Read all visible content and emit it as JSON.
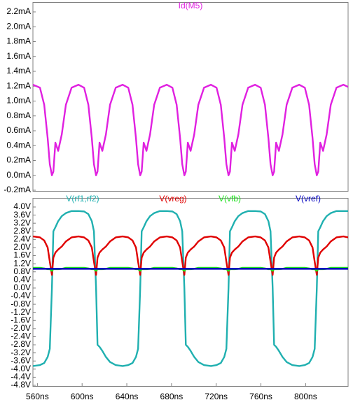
{
  "chart_data": [
    {
      "type": "line",
      "x": [
        556,
        562.3,
        566.1,
        569.2,
        571.1,
        573.0,
        574.3,
        576.1,
        578.6,
        581.8,
        585.5,
        590.6,
        596.8,
        601.8,
        605.6,
        608.7,
        610.6,
        612.5,
        613.8,
        615.6,
        618.1,
        621.3,
        625.0,
        630.1,
        636.3,
        641.3,
        645.1,
        648.2,
        650.1,
        652.0,
        653.3,
        655.1,
        657.6,
        660.8,
        664.5,
        669.6,
        675.8,
        680.8,
        684.6,
        687.7,
        689.6,
        691.5,
        692.8,
        694.6,
        697.1,
        700.3,
        704.0,
        709.1,
        715.3,
        720.3,
        724.1,
        727.2,
        729.1,
        731.0,
        732.3,
        734.1,
        736.6,
        739.8,
        743.5,
        748.6,
        754.8,
        759.8,
        763.6,
        766.7,
        768.6,
        770.5,
        771.8,
        773.6,
        776.1,
        779.3,
        783.0,
        788.1,
        794.3,
        799.3,
        803.1,
        806.2,
        808.1,
        810.0,
        811.3,
        813.1,
        815.6,
        818.8,
        822.5,
        827.6,
        833.8,
        838
      ],
      "xlim": [
        556,
        838
      ],
      "ylim": [
        -0.2,
        2.2
      ],
      "yticks": [
        {
          "value": -0.2,
          "label": "-0.2mA"
        },
        {
          "value": 0,
          "label": "0.0mA"
        },
        {
          "value": 0.2,
          "label": "0.2mA"
        },
        {
          "value": 0.4,
          "label": "0.4mA"
        },
        {
          "value": 0.6,
          "label": "0.6mA"
        },
        {
          "value": 0.8,
          "label": "0.8mA"
        },
        {
          "value": 1.0,
          "label": "1.0mA"
        },
        {
          "value": 1.2,
          "label": "1.2mA"
        },
        {
          "value": 1.4,
          "label": "1.4mA"
        },
        {
          "value": 1.6,
          "label": "1.6mA"
        },
        {
          "value": 1.8,
          "label": "1.8mA"
        },
        {
          "value": 2.0,
          "label": "2.0mA"
        },
        {
          "value": 2.2,
          "label": "2.2mA"
        }
      ],
      "series": [
        {
          "name": "Id(M5)",
          "color": "#e020e0",
          "values": [
            1.22,
            1.18,
            0.95,
            0.5,
            0.15,
            0,
            0.05,
            0.44,
            0.33,
            0.55,
            0.95,
            1.18,
            1.22,
            1.18,
            0.95,
            0.5,
            0.15,
            0,
            0.05,
            0.44,
            0.33,
            0.55,
            0.95,
            1.18,
            1.22,
            1.18,
            0.95,
            0.5,
            0.15,
            0,
            0.05,
            0.44,
            0.33,
            0.55,
            0.95,
            1.18,
            1.22,
            1.18,
            0.95,
            0.5,
            0.15,
            0,
            0.05,
            0.44,
            0.33,
            0.55,
            0.95,
            1.18,
            1.22,
            1.18,
            0.95,
            0.5,
            0.15,
            0,
            0.05,
            0.44,
            0.33,
            0.55,
            0.95,
            1.18,
            1.22,
            1.18,
            0.95,
            0.5,
            0.15,
            0,
            0.05,
            0.44,
            0.33,
            0.55,
            0.95,
            1.18,
            1.22,
            1.18,
            0.95,
            0.5,
            0.15,
            0,
            0.05,
            0.44,
            0.33,
            0.55,
            0.95,
            1.18,
            1.22,
            1.19
          ]
        }
      ]
    },
    {
      "type": "line",
      "x": [
        556,
        562.3,
        566.1,
        569.2,
        571.1,
        573.0,
        574.3,
        576.1,
        578.6,
        581.8,
        585.5,
        590.6,
        596.8,
        601.8,
        605.6,
        608.7,
        610.6,
        612.5,
        613.8,
        615.6,
        618.1,
        621.3,
        625.0,
        630.1,
        636.3,
        641.3,
        645.1,
        648.2,
        650.1,
        652.0,
        653.3,
        655.1,
        657.6,
        660.8,
        664.5,
        669.6,
        675.8,
        680.8,
        684.6,
        687.7,
        689.6,
        691.5,
        692.8,
        694.6,
        697.1,
        700.3,
        704.0,
        709.1,
        715.3,
        720.3,
        724.1,
        727.2,
        729.1,
        731.0,
        732.3,
        734.1,
        736.6,
        739.8,
        743.5,
        748.6,
        754.8,
        759.8,
        763.6,
        766.7,
        768.6,
        770.5,
        771.8,
        773.6,
        776.1,
        779.3,
        783.0,
        788.1,
        794.3,
        799.3,
        803.1,
        806.2,
        808.1,
        810.0,
        811.3,
        813.1,
        815.6,
        818.8,
        822.5,
        827.6,
        833.8,
        838
      ],
      "xlim": [
        556,
        838
      ],
      "xticks": [
        {
          "value": 560,
          "label": "560ns"
        },
        {
          "value": 600,
          "label": "600ns"
        },
        {
          "value": 640,
          "label": "640ns"
        },
        {
          "value": 680,
          "label": "680ns"
        },
        {
          "value": 720,
          "label": "720ns"
        },
        {
          "value": 760,
          "label": "760ns"
        },
        {
          "value": 800,
          "label": "800ns"
        }
      ],
      "ylim": [
        -4.8,
        4.0
      ],
      "yticks": [
        {
          "value": -4.8,
          "label": "-4.8V"
        },
        {
          "value": -4.4,
          "label": "-4.4V"
        },
        {
          "value": -4.0,
          "label": "-4.0V"
        },
        {
          "value": -3.6,
          "label": "-3.6V"
        },
        {
          "value": -3.2,
          "label": "-3.2V"
        },
        {
          "value": -2.8,
          "label": "-2.8V"
        },
        {
          "value": -2.4,
          "label": "-2.4V"
        },
        {
          "value": -2.0,
          "label": "-2.0V"
        },
        {
          "value": -1.6,
          "label": "-1.6V"
        },
        {
          "value": -1.2,
          "label": "-1.2V"
        },
        {
          "value": -0.8,
          "label": "-0.8V"
        },
        {
          "value": -0.4,
          "label": "-0.4V"
        },
        {
          "value": 0,
          "label": "0.0V"
        },
        {
          "value": 0.4,
          "label": "0.4V"
        },
        {
          "value": 0.8,
          "label": "0.8V"
        },
        {
          "value": 1.2,
          "label": "1.2V"
        },
        {
          "value": 1.6,
          "label": "1.6V"
        },
        {
          "value": 2.0,
          "label": "2.0V"
        },
        {
          "value": 2.4,
          "label": "2.4V"
        },
        {
          "value": 2.8,
          "label": "2.8V"
        },
        {
          "value": 3.2,
          "label": "3.2V"
        },
        {
          "value": 3.6,
          "label": "3.6V"
        },
        {
          "value": 4.0,
          "label": "4.0V"
        }
      ],
      "series": [
        {
          "name": "V(rf1,rf2)",
          "color": "#20b0b0",
          "values": [
            -3.85,
            -3.8,
            -3.7,
            -3.4,
            -3.0,
            0,
            2.8,
            3.0,
            3.3,
            3.55,
            3.7,
            3.8,
            3.8,
            3.78,
            3.65,
            3.3,
            2.8,
            0,
            -2.8,
            -2.9,
            -3.1,
            -3.4,
            -3.65,
            -3.8,
            -3.85,
            -3.8,
            -3.7,
            -3.4,
            -3.0,
            0,
            2.8,
            3.0,
            3.3,
            3.55,
            3.7,
            3.8,
            3.8,
            3.78,
            3.65,
            3.3,
            2.8,
            0,
            -2.8,
            -2.9,
            -3.1,
            -3.4,
            -3.65,
            -3.8,
            -3.85,
            -3.8,
            -3.7,
            -3.4,
            -3.0,
            0,
            2.8,
            3.0,
            3.3,
            3.55,
            3.7,
            3.8,
            3.8,
            3.78,
            3.65,
            3.3,
            2.8,
            0,
            -2.8,
            -2.9,
            -3.1,
            -3.4,
            -3.65,
            -3.8,
            -3.85,
            -3.8,
            -3.7,
            -3.4,
            -3.0,
            0,
            2.8,
            3.0,
            3.3,
            3.55,
            3.7,
            3.8,
            3.8,
            3.8
          ]
        },
        {
          "name": "V(vreg)",
          "color": "#e00000",
          "values": [
            2.55,
            2.5,
            2.35,
            2.0,
            1.3,
            0.65,
            1.5,
            1.75,
            1.9,
            2.05,
            2.3,
            2.5,
            2.55,
            2.5,
            2.35,
            2.0,
            1.3,
            0.65,
            1.5,
            1.75,
            1.9,
            2.05,
            2.3,
            2.5,
            2.55,
            2.5,
            2.35,
            2.0,
            1.3,
            0.65,
            1.5,
            1.75,
            1.9,
            2.05,
            2.3,
            2.5,
            2.55,
            2.5,
            2.35,
            2.0,
            1.3,
            0.65,
            1.5,
            1.75,
            1.9,
            2.05,
            2.3,
            2.5,
            2.55,
            2.5,
            2.35,
            2.0,
            1.3,
            0.65,
            1.5,
            1.75,
            1.9,
            2.05,
            2.3,
            2.5,
            2.55,
            2.5,
            2.35,
            2.0,
            1.3,
            0.65,
            1.5,
            1.75,
            1.9,
            2.05,
            2.3,
            2.5,
            2.55,
            2.5,
            2.35,
            2.0,
            1.3,
            0.65,
            1.5,
            1.75,
            1.9,
            2.05,
            2.3,
            2.5,
            2.55,
            2.5
          ]
        },
        {
          "name": "V(vfb)",
          "color": "#20e020",
          "values": [
            1.0,
            1.0,
            0.97,
            0.93,
            0.93,
            0.85,
            0.93,
            0.93,
            0.93,
            0.95,
            1.0,
            1.0,
            1.0,
            1.0,
            0.97,
            0.93,
            0.93,
            0.85,
            0.93,
            0.93,
            0.93,
            0.95,
            1.0,
            1.0,
            1.0,
            1.0,
            0.97,
            0.93,
            0.93,
            0.85,
            0.93,
            0.93,
            0.93,
            0.95,
            1.0,
            1.0,
            1.0,
            1.0,
            0.97,
            0.93,
            0.93,
            0.85,
            0.93,
            0.93,
            0.93,
            0.95,
            1.0,
            1.0,
            1.0,
            1.0,
            0.97,
            0.93,
            0.93,
            0.85,
            0.93,
            0.93,
            0.93,
            0.95,
            1.0,
            1.0,
            1.0,
            1.0,
            0.97,
            0.93,
            0.93,
            0.85,
            0.93,
            0.93,
            0.93,
            0.95,
            1.0,
            1.0,
            1.0,
            1.0,
            0.97,
            0.93,
            0.93,
            0.85,
            0.93,
            0.93,
            0.93,
            0.95,
            1.0,
            1.0,
            1.0,
            1.0
          ]
        },
        {
          "name": "V(vref)",
          "color": "#0000c0",
          "values": [
            0.95,
            0.95,
            0.95,
            0.95,
            0.95,
            0.95,
            0.95,
            0.95,
            0.95,
            0.95,
            0.95,
            0.95,
            0.95,
            0.95,
            0.95,
            0.95,
            0.95,
            0.95,
            0.95,
            0.95,
            0.95,
            0.95,
            0.95,
            0.95,
            0.95,
            0.95,
            0.95,
            0.95,
            0.95,
            0.95,
            0.95,
            0.95,
            0.95,
            0.95,
            0.95,
            0.95,
            0.95,
            0.95,
            0.95,
            0.95,
            0.95,
            0.95,
            0.95,
            0.95,
            0.95,
            0.95,
            0.95,
            0.95,
            0.95,
            0.95,
            0.95,
            0.95,
            0.95,
            0.95,
            0.95,
            0.95,
            0.95,
            0.95,
            0.95,
            0.95,
            0.95,
            0.95,
            0.95,
            0.95,
            0.95,
            0.95,
            0.95,
            0.95,
            0.95,
            0.95,
            0.95,
            0.95,
            0.95,
            0.95,
            0.95,
            0.95,
            0.95,
            0.95,
            0.95,
            0.95,
            0.95,
            0.95,
            0.95,
            0.95,
            0.95,
            0.95
          ]
        }
      ]
    }
  ]
}
